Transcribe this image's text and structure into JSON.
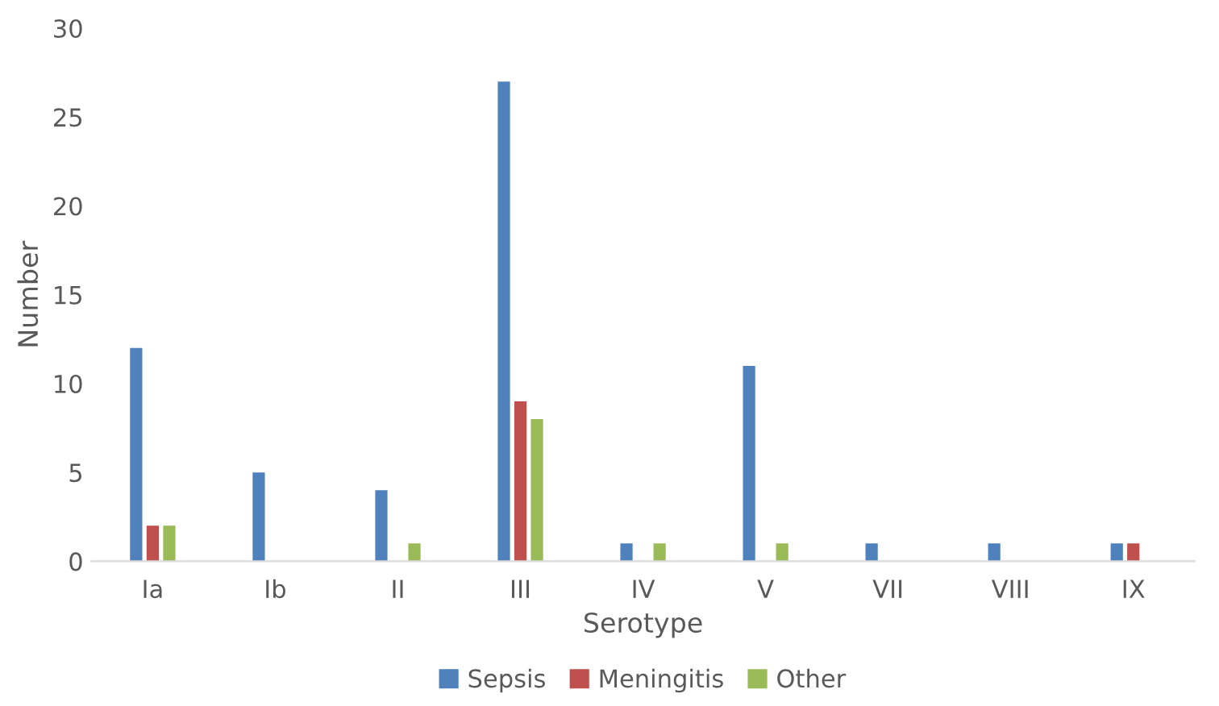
{
  "chart_data": {
    "type": "bar",
    "xlabel": "Serotype",
    "ylabel": "Number",
    "categories": [
      "Ia",
      "Ib",
      "II",
      "III",
      "IV",
      "V",
      "VII",
      "VIII",
      "IX"
    ],
    "series": [
      {
        "name": "Sepsis",
        "color": "#4f81bd",
        "values": [
          12,
          5,
          4,
          27,
          1,
          11,
          1,
          1,
          1
        ]
      },
      {
        "name": "Meningitis",
        "color": "#c0504d",
        "values": [
          2,
          0,
          0,
          9,
          0,
          0,
          0,
          0,
          1
        ]
      },
      {
        "name": "Other",
        "color": "#9bbb59",
        "values": [
          2,
          0,
          1,
          8,
          1,
          1,
          0,
          0,
          0
        ]
      }
    ],
    "ylim": [
      0,
      30
    ],
    "yticks": [
      0,
      5,
      10,
      15,
      20,
      25,
      30
    ],
    "grid": false,
    "legend": "bottom"
  }
}
